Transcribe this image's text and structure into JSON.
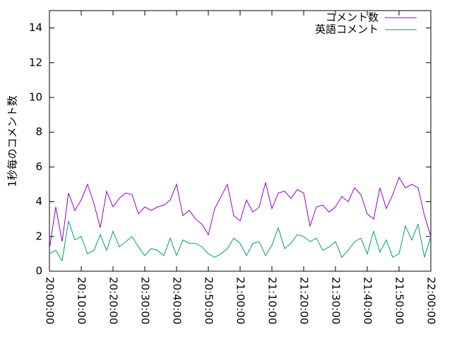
{
  "chart_data": {
    "type": "line",
    "y_label": "1秒毎のコメント数",
    "x": [
      "20:00:00",
      "20:02:00",
      "20:04:00",
      "20:06:00",
      "20:08:00",
      "20:10:00",
      "20:12:00",
      "20:14:00",
      "20:16:00",
      "20:18:00",
      "20:20:00",
      "20:22:00",
      "20:24:00",
      "20:26:00",
      "20:28:00",
      "20:30:00",
      "20:32:00",
      "20:34:00",
      "20:36:00",
      "20:38:00",
      "20:40:00",
      "20:42:00",
      "20:44:00",
      "20:46:00",
      "20:48:00",
      "20:50:00",
      "20:52:00",
      "20:54:00",
      "20:56:00",
      "20:58:00",
      "21:00:00",
      "21:02:00",
      "21:04:00",
      "21:06:00",
      "21:08:00",
      "21:10:00",
      "21:12:00",
      "21:14:00",
      "21:16:00",
      "21:18:00",
      "21:20:00",
      "21:22:00",
      "21:24:00",
      "21:26:00",
      "21:28:00",
      "21:30:00",
      "21:32:00",
      "21:34:00",
      "21:36:00",
      "21:38:00",
      "21:40:00",
      "21:42:00",
      "21:44:00",
      "21:46:00",
      "21:48:00",
      "21:50:00",
      "21:52:00",
      "21:54:00",
      "21:56:00",
      "21:58:00",
      "22:00:00"
    ],
    "series": [
      {
        "name": "コメント数",
        "color": "#9400d3",
        "values": [
          1.3,
          3.7,
          1.7,
          4.5,
          3.5,
          4.1,
          5.0,
          3.9,
          2.5,
          4.6,
          3.7,
          4.2,
          4.5,
          4.4,
          3.3,
          3.7,
          3.5,
          3.7,
          3.8,
          4.1,
          5.0,
          3.2,
          3.5,
          3.0,
          2.7,
          2.1,
          3.6,
          4.3,
          5.0,
          3.2,
          2.9,
          4.1,
          3.4,
          3.7,
          5.1,
          3.6,
          4.5,
          4.6,
          4.2,
          4.7,
          4.5,
          2.6,
          3.7,
          3.8,
          3.4,
          3.7,
          4.3,
          4.0,
          4.8,
          4.4,
          3.3,
          3.0,
          4.8,
          3.6,
          4.4,
          5.4,
          4.8,
          5.0,
          4.8,
          3.2,
          2.0
        ]
      },
      {
        "name": "英語コメント",
        "color": "#009e73",
        "values": [
          1.0,
          1.2,
          0.6,
          2.9,
          1.8,
          2.0,
          1.0,
          1.2,
          2.1,
          1.2,
          2.3,
          1.4,
          1.7,
          2.0,
          1.4,
          0.9,
          1.3,
          1.2,
          0.9,
          1.9,
          0.9,
          1.8,
          1.6,
          1.6,
          1.4,
          1.0,
          0.8,
          1.0,
          1.3,
          1.9,
          1.6,
          0.9,
          1.6,
          1.7,
          0.9,
          1.5,
          2.5,
          1.3,
          1.6,
          2.1,
          2.0,
          1.7,
          1.9,
          1.2,
          1.4,
          1.7,
          0.8,
          1.2,
          1.7,
          1.9,
          1.0,
          2.3,
          1.1,
          1.8,
          0.8,
          1.0,
          2.6,
          1.8,
          2.7,
          0.8,
          2.0
        ]
      }
    ],
    "xlim": [
      "20:00:00",
      "22:00:00"
    ],
    "xticks": [
      "20:00:00",
      "20:10:00",
      "20:20:00",
      "20:30:00",
      "20:40:00",
      "20:50:00",
      "21:00:00",
      "21:10:00",
      "21:20:00",
      "21:30:00",
      "21:40:00",
      "21:50:00",
      "22:00:00"
    ],
    "ylim": [
      0,
      15
    ],
    "yticks": [
      0,
      2,
      4,
      6,
      8,
      10,
      12,
      14
    ],
    "legend": "top-right"
  }
}
